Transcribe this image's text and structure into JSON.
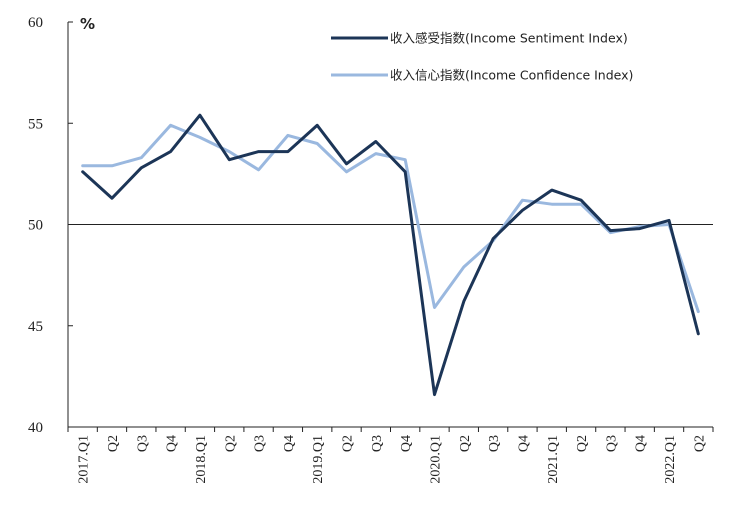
{
  "chart_data": {
    "type": "line",
    "ylabel": "%",
    "ylim": [
      40,
      60
    ],
    "yticks": [
      40,
      45,
      50,
      55,
      60
    ],
    "reference_line": 50,
    "grid": false,
    "legend_position": "top-right",
    "categories": [
      "2017.Q1",
      "Q2",
      "Q3",
      "Q4",
      "2018.Q1",
      "Q2",
      "Q3",
      "Q4",
      "2019.Q1",
      "Q2",
      "Q3",
      "Q4",
      "2020.Q1",
      "Q2",
      "Q3",
      "Q4",
      "2021.Q1",
      "Q2",
      "Q3",
      "Q4",
      "2022.Q1",
      "Q2"
    ],
    "series": [
      {
        "name": "收入感受指数(Income Sentiment Index)",
        "color": "#1c3557",
        "values": [
          52.6,
          51.3,
          52.8,
          53.6,
          55.4,
          53.2,
          53.6,
          53.6,
          54.9,
          53.0,
          54.1,
          52.6,
          41.6,
          46.2,
          49.3,
          50.7,
          51.7,
          51.2,
          49.7,
          49.8,
          50.2,
          44.6
        ]
      },
      {
        "name": "收入信心指数(Income Confidence Index)",
        "color": "#9ab8df",
        "values": [
          52.9,
          52.9,
          53.3,
          54.9,
          54.3,
          53.6,
          52.7,
          54.4,
          54.0,
          52.6,
          53.5,
          53.2,
          45.9,
          47.9,
          49.2,
          51.2,
          51.0,
          51.0,
          49.6,
          49.9,
          50.0,
          45.7
        ]
      }
    ]
  }
}
